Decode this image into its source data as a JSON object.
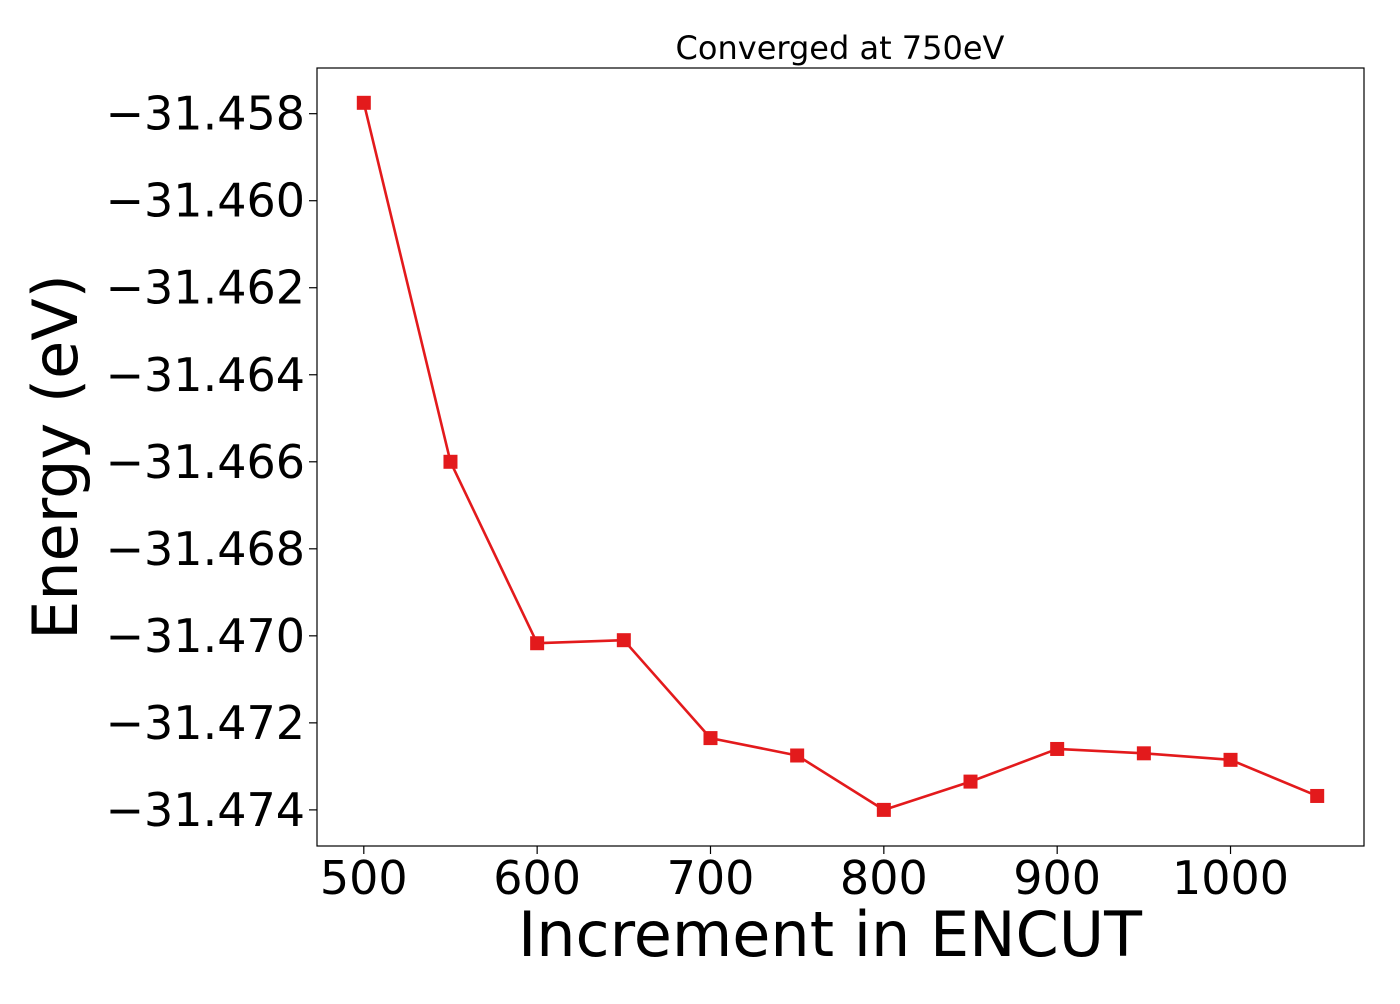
{
  "chart_data": {
    "type": "line",
    "title": "Converged at 750eV",
    "xlabel": "Increment in ENCUT",
    "ylabel": "Energy (eV)",
    "x": [
      500,
      550,
      600,
      650,
      700,
      750,
      800,
      850,
      900,
      950,
      1000,
      1050
    ],
    "series": [
      {
        "name": "",
        "values": [
          -31.45775,
          -31.466,
          -31.47017,
          -31.4701,
          -31.47235,
          -31.47275,
          -31.474,
          -31.47335,
          -31.4726,
          -31.4727,
          -31.47285,
          -31.47368
        ]
      }
    ],
    "xlim": [
      473,
      1077
    ],
    "ylim": [
      -31.47483,
      -31.45695
    ],
    "xticks": [
      500,
      600,
      700,
      800,
      900,
      1000
    ],
    "yticks": [
      -31.458,
      -31.46,
      -31.462,
      -31.464,
      -31.466,
      -31.468,
      -31.47,
      -31.472,
      -31.474
    ],
    "xtick_labels": [
      "500",
      "600",
      "700",
      "800",
      "900",
      "1000"
    ],
    "ytick_labels": [
      "−31.458",
      "−31.460",
      "−31.462",
      "−31.464",
      "−31.466",
      "−31.468",
      "−31.470",
      "−31.472",
      "−31.474"
    ],
    "line_color": "#e31a1c",
    "marker": "square",
    "grid": false,
    "legend": "none"
  }
}
